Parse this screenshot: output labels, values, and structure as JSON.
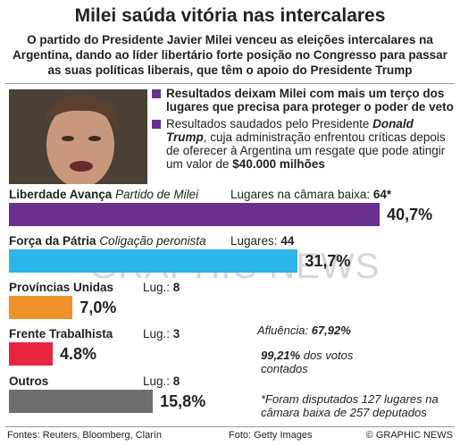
{
  "header": {
    "title": "Milei saúda vitória nas intercalares",
    "subtitle": "O partido do Presidente Javier Milei venceu as eleições intercalares na Argentina, dando ao líder libertário forte posição no Congresso para passar as suas políticas liberais, que têm o apoio do Presidente Trump"
  },
  "bullets": [
    [
      {
        "text": "Resultados deixam Milei com mais um terço dos lugares que precisa para proteger o poder de veto",
        "bold": true
      }
    ],
    [
      {
        "text": "Resultados saudados pelo Presidente ",
        "bold": false
      },
      {
        "text": "Donald Trump",
        "bold": true,
        "italic": true
      },
      {
        "text": ", cuja administração enfrentou críticas depois de oferecer à Argentina um resgate que pode atingir um valor de ",
        "bold": false
      },
      {
        "text": "$40.000 milhões",
        "bold": true
      }
    ]
  ],
  "parties": [
    {
      "name": "Liberdade Avança",
      "subtitle": "Partido de Milei",
      "seats_label": "Lugares na câmara baixa:",
      "seats": "64*",
      "value": 40.7,
      "value_label": "40,7%",
      "color": "#6b2e91"
    },
    {
      "name": "Força da Pátria",
      "subtitle": "Coligação peronista",
      "seats_label": "Lugares:",
      "seats": "44",
      "value": 31.7,
      "value_label": "31,7%",
      "color": "#2cb5e8"
    },
    {
      "name": "Províncias Unidas",
      "seats_label": "Lug.:",
      "seats": "8",
      "value": 7.0,
      "value_label": "7,0%",
      "color": "#f0922b"
    },
    {
      "name": "Frente Trabalhista",
      "seats_label": "Lug.:",
      "seats": "3",
      "value": 4.8,
      "value_label": "4.8%",
      "color": "#e8253f"
    },
    {
      "name": "Outros",
      "seats_label": "Lug.:",
      "seats": "8",
      "value": 15.8,
      "value_label": "15,8%",
      "color": "#6d6e71"
    }
  ],
  "notes": {
    "turnout_label": "Afluência:",
    "turnout": "67,92%",
    "counted": "99,21%",
    "counted_label": "dos votos contados",
    "footnote": "*Foram disputados 127 lugares na câmara baixa de 257 deputados"
  },
  "footer": {
    "sources": "Fontes: Reuters, Bloomberg, Clarín",
    "photo": "Foto: Getty Images",
    "copyright": "© GRAPHIC NEWS"
  },
  "watermark": "GRAPHIC NEWS"
}
